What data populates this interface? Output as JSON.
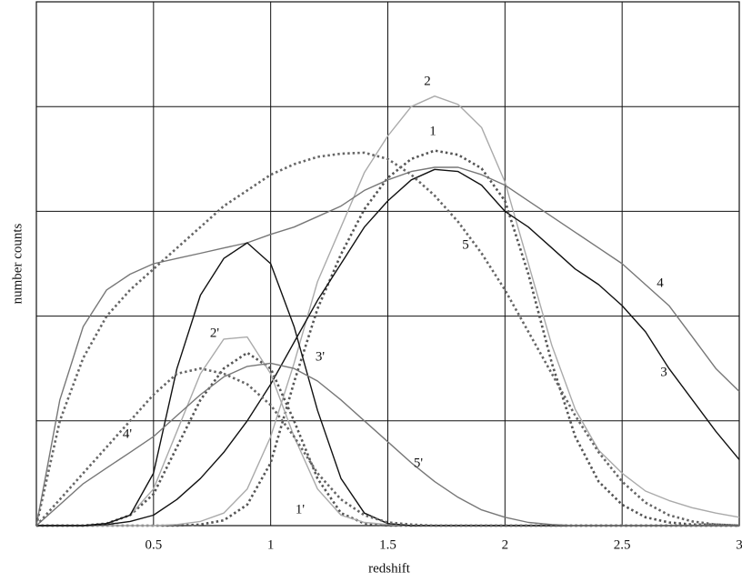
{
  "chart_data": {
    "type": "line",
    "x_label": "redshift",
    "y_label": "number counts",
    "xlim": [
      0,
      3
    ],
    "xticks": [
      0.5,
      1,
      1.5,
      2,
      2.5,
      3
    ],
    "ylim": [
      0,
      5
    ],
    "yticks": [
      0,
      1,
      2,
      3,
      4,
      5
    ],
    "grid": true,
    "x": [
      0,
      0.1,
      0.2,
      0.3,
      0.4,
      0.5,
      0.6,
      0.7,
      0.8,
      0.9,
      1,
      1.1,
      1.2,
      1.3,
      1.4,
      1.5,
      1.6,
      1.7,
      1.8,
      1.9,
      2,
      2.1,
      2.2,
      2.3,
      2.4,
      2.5,
      2.6,
      2.7,
      2.8,
      2.9,
      3
    ],
    "series": [
      {
        "name": "1",
        "color": "#555555",
        "line_style": "dotted",
        "values": [
          0,
          0,
          0,
          0,
          0,
          0,
          0,
          0.01,
          0.05,
          0.2,
          0.6,
          1.37,
          2.07,
          2.59,
          3.02,
          3.32,
          3.5,
          3.58,
          3.54,
          3.41,
          3.1,
          2.4,
          1.55,
          0.85,
          0.42,
          0.2,
          0.08,
          0.03,
          0.01,
          0.01,
          0
        ]
      },
      {
        "name": "2",
        "color": "#aaaaaa",
        "line_style": "solid",
        "values": [
          0,
          0,
          0,
          0,
          0,
          0,
          0.01,
          0.04,
          0.12,
          0.35,
          0.85,
          1.55,
          2.33,
          2.85,
          3.37,
          3.72,
          4.0,
          4.1,
          4.02,
          3.8,
          3.28,
          2.5,
          1.72,
          1.11,
          0.72,
          0.5,
          0.33,
          0.24,
          0.17,
          0.12,
          0.08
        ]
      },
      {
        "name": "3",
        "color": "#111111",
        "line_style": "solid",
        "values": [
          0,
          0,
          0,
          0.01,
          0.04,
          0.1,
          0.25,
          0.45,
          0.7,
          1.0,
          1.35,
          1.75,
          2.15,
          2.5,
          2.85,
          3.1,
          3.3,
          3.4,
          3.38,
          3.25,
          3.0,
          2.85,
          2.65,
          2.45,
          2.3,
          2.1,
          1.85,
          1.5,
          1.2,
          0.9,
          0.63
        ]
      },
      {
        "name": "4",
        "color": "#777777",
        "line_style": "solid",
        "values": [
          0,
          1.2,
          1.9,
          2.25,
          2.4,
          2.5,
          2.55,
          2.6,
          2.65,
          2.7,
          2.78,
          2.85,
          2.95,
          3.05,
          3.2,
          3.3,
          3.38,
          3.42,
          3.42,
          3.35,
          3.25,
          3.1,
          2.95,
          2.8,
          2.65,
          2.5,
          2.3,
          2.1,
          1.8,
          1.5,
          1.28
        ]
      },
      {
        "name": "5",
        "color": "#666666",
        "line_style": "dotted",
        "values": [
          0,
          1.0,
          1.6,
          2.0,
          2.25,
          2.45,
          2.65,
          2.85,
          3.05,
          3.2,
          3.35,
          3.45,
          3.52,
          3.55,
          3.56,
          3.5,
          3.35,
          3.15,
          2.9,
          2.6,
          2.25,
          1.85,
          1.45,
          1.05,
          0.7,
          0.42,
          0.22,
          0.1,
          0.04,
          0.01,
          0
        ]
      },
      {
        "name": "1'",
        "color": "#555555",
        "line_style": "dotted",
        "values": [
          0,
          0,
          0,
          0.02,
          0.1,
          0.3,
          0.75,
          1.2,
          1.5,
          1.65,
          1.5,
          1.0,
          0.45,
          0.12,
          0.02,
          0,
          0,
          0,
          0,
          0,
          0,
          0,
          0,
          0,
          0,
          0,
          0,
          0,
          0,
          0,
          0
        ]
      },
      {
        "name": "2'",
        "color": "#aaaaaa",
        "line_style": "solid",
        "values": [
          0,
          0,
          0,
          0.02,
          0.1,
          0.35,
          0.9,
          1.45,
          1.78,
          1.8,
          1.45,
          0.85,
          0.35,
          0.1,
          0.03,
          0.01,
          0,
          0,
          0,
          0,
          0,
          0,
          0,
          0,
          0,
          0,
          0,
          0,
          0,
          0,
          0
        ]
      },
      {
        "name": "3'",
        "color": "#111111",
        "line_style": "solid",
        "values": [
          0,
          0,
          0,
          0.02,
          0.1,
          0.5,
          1.5,
          2.2,
          2.55,
          2.7,
          2.5,
          1.9,
          1.1,
          0.45,
          0.12,
          0.02,
          0,
          0,
          0,
          0,
          0,
          0,
          0,
          0,
          0,
          0,
          0,
          0,
          0,
          0,
          0
        ]
      },
      {
        "name": "4'",
        "color": "#777777",
        "line_style": "solid",
        "values": [
          0,
          0.2,
          0.4,
          0.55,
          0.7,
          0.85,
          1.05,
          1.25,
          1.42,
          1.52,
          1.55,
          1.5,
          1.38,
          1.2,
          1.0,
          0.8,
          0.6,
          0.42,
          0.27,
          0.15,
          0.08,
          0.03,
          0.01,
          0,
          0,
          0,
          0,
          0,
          0,
          0,
          0
        ]
      },
      {
        "name": "5'",
        "color": "#666666",
        "line_style": "dotted",
        "values": [
          0,
          0.25,
          0.5,
          0.75,
          1.0,
          1.25,
          1.45,
          1.5,
          1.45,
          1.35,
          1.15,
          0.85,
          0.5,
          0.25,
          0.1,
          0.03,
          0.01,
          0,
          0,
          0,
          0,
          0,
          0,
          0,
          0,
          0,
          0,
          0,
          0,
          0,
          0
        ]
      }
    ]
  }
}
